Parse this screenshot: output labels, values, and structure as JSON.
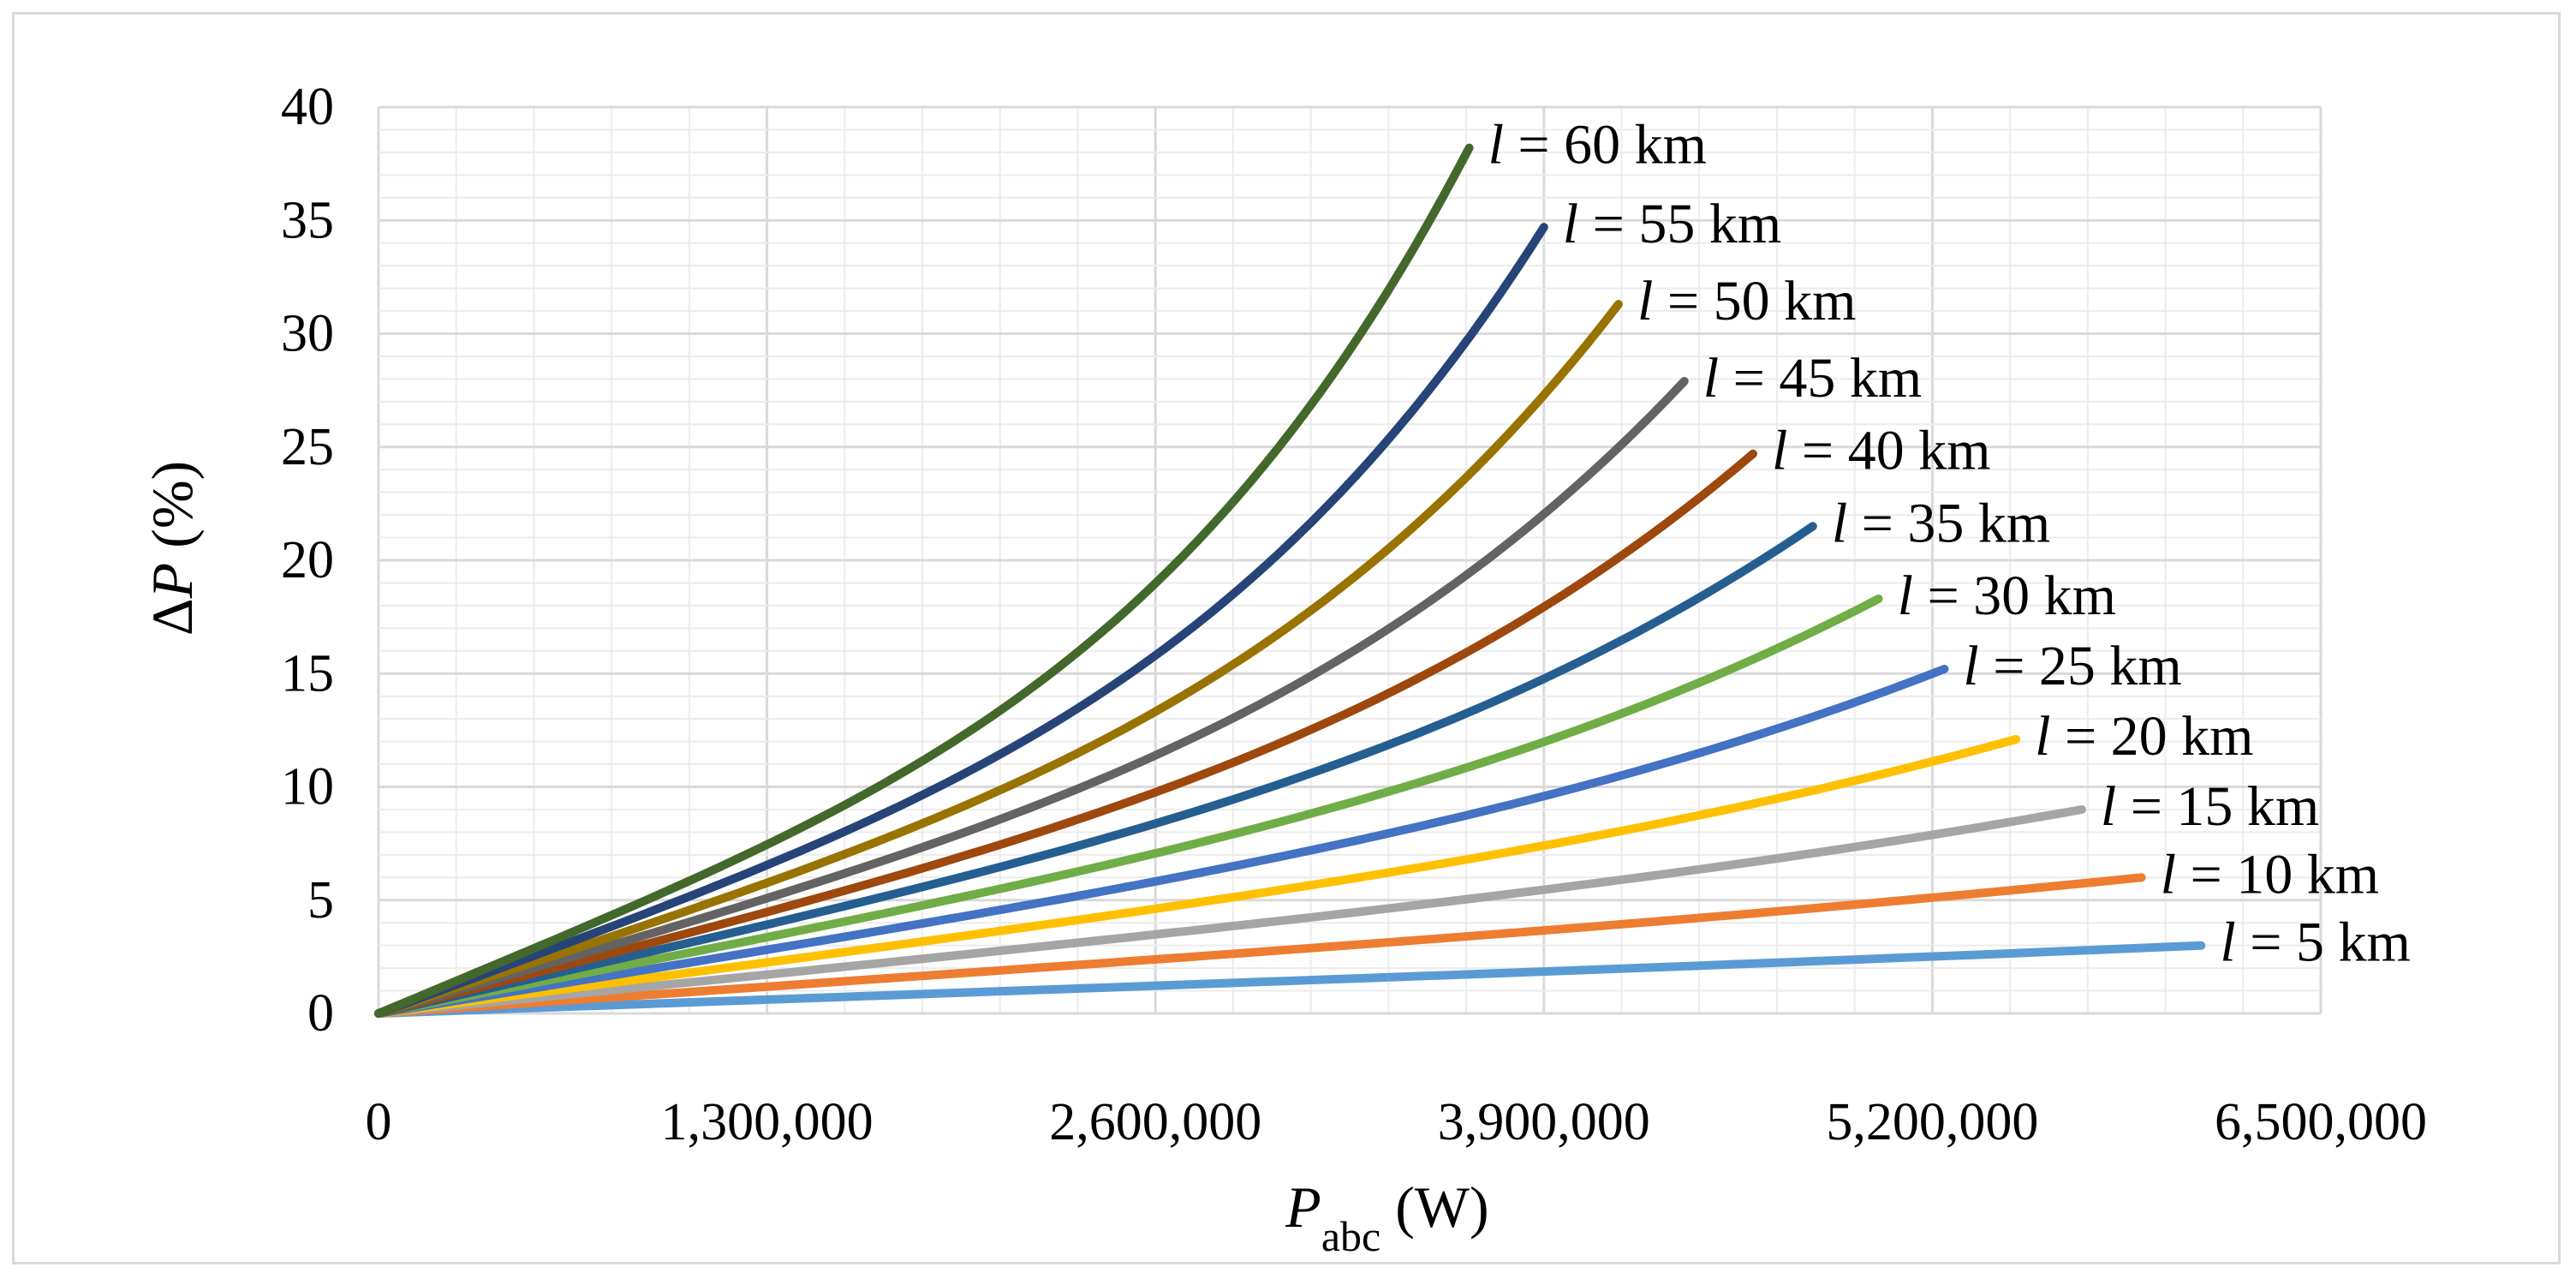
{
  "chart_data": {
    "type": "line",
    "title": "",
    "xlabel": {
      "main": "P",
      "sub": "abc",
      "unit": " (W)"
    },
    "ylabel": {
      "delta": "Δ",
      "var": "P",
      "unit": " (%)"
    },
    "xlim": [
      0,
      6500000
    ],
    "ylim": [
      0,
      40
    ],
    "x_ticks": [
      0,
      1300000,
      2600000,
      3900000,
      5200000,
      6500000
    ],
    "x_tick_labels": [
      "0",
      "1,300,000",
      "2,600,000",
      "3,900,000",
      "5,200,000",
      "6,500,000"
    ],
    "y_ticks": [
      0,
      5,
      10,
      15,
      20,
      25,
      30,
      35,
      40
    ],
    "y_tick_labels": [
      "0",
      "5",
      "10",
      "15",
      "20",
      "25",
      "30",
      "35",
      "40"
    ],
    "grid": {
      "major": true,
      "minor": true
    },
    "series": [
      {
        "name": "l = 5 km",
        "label_var": "l",
        "label_text": " = 5 km",
        "color": "#5b9bd5",
        "x_end": 6100000,
        "y_end": 3.0,
        "curvature": 0.05
      },
      {
        "name": "l = 10 km",
        "label_var": "l",
        "label_text": " = 10 km",
        "color": "#ed7d31",
        "x_end": 5900000,
        "y_end": 6.0,
        "curvature": 0.12
      },
      {
        "name": "l = 15 km",
        "label_var": "l",
        "label_text": " = 15 km",
        "color": "#a5a5a5",
        "x_end": 5700000,
        "y_end": 9.0,
        "curvature": 0.2
      },
      {
        "name": "l = 20 km",
        "label_var": "l",
        "label_text": " = 20 km",
        "color": "#ffc000",
        "x_end": 5480000,
        "y_end": 12.1,
        "curvature": 0.28
      },
      {
        "name": "l = 25 km",
        "label_var": "l",
        "label_text": " = 25 km",
        "color": "#4472c4",
        "x_end": 5240000,
        "y_end": 15.2,
        "curvature": 0.35
      },
      {
        "name": "l = 30 km",
        "label_var": "l",
        "label_text": " = 30 km",
        "color": "#70ad47",
        "x_end": 5020000,
        "y_end": 18.3,
        "curvature": 0.42
      },
      {
        "name": "l = 35 km",
        "label_var": "l",
        "label_text": " = 35 km",
        "color": "#255e91",
        "x_end": 4800000,
        "y_end": 21.5,
        "curvature": 0.5
      },
      {
        "name": "l = 40 km",
        "label_var": "l",
        "label_text": " = 40 km",
        "color": "#9e480e",
        "x_end": 4600000,
        "y_end": 24.7,
        "curvature": 0.58
      },
      {
        "name": "l = 45 km",
        "label_var": "l",
        "label_text": " = 45 km",
        "color": "#636363",
        "x_end": 4370000,
        "y_end": 27.9,
        "curvature": 0.66
      },
      {
        "name": "l = 50 km",
        "label_var": "l",
        "label_text": " = 50 km",
        "color": "#997300",
        "x_end": 4150000,
        "y_end": 31.3,
        "curvature": 0.74
      },
      {
        "name": "l = 55 km",
        "label_var": "l",
        "label_text": " = 55 km",
        "color": "#264478",
        "x_end": 3900000,
        "y_end": 34.7,
        "curvature": 0.82
      },
      {
        "name": "l = 60 km",
        "label_var": "l",
        "label_text": " = 60 km",
        "color": "#43682b",
        "x_end": 3650000,
        "y_end": 38.2,
        "curvature": 0.9
      }
    ]
  }
}
